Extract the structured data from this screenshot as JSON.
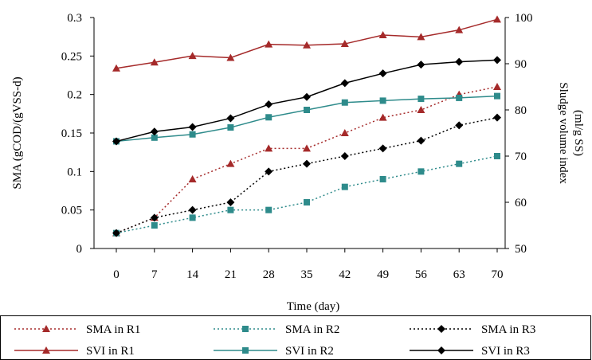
{
  "chart_data": {
    "type": "line",
    "x": [
      0,
      7,
      14,
      21,
      28,
      35,
      42,
      49,
      56,
      63,
      70
    ],
    "xlabel": "Time (day)",
    "ylabel": "SMA (gCOD/(gVSS-d)",
    "y2label_line1": "Sludge volume index",
    "y2label_line2": "(ml/g SS)",
    "ylim": [
      0,
      0.3
    ],
    "y2lim": [
      50,
      100
    ],
    "y_ticks": [
      "0",
      "0.05",
      "0.1",
      "0.15",
      "0.2",
      "0.25",
      "0.3"
    ],
    "y2_ticks": [
      "50",
      "60",
      "70",
      "80",
      "90",
      "100"
    ],
    "x_ticks": [
      "0",
      "7",
      "14",
      "21",
      "28",
      "35",
      "42",
      "49",
      "56",
      "63",
      "70"
    ],
    "grid": false,
    "legend_position": "bottom",
    "series": [
      {
        "name": "SMA in R1",
        "axis": "left",
        "style": "dotted",
        "marker": "triangle",
        "color": "#a52a2a",
        "values": [
          0.02,
          0.04,
          0.09,
          0.11,
          0.13,
          0.13,
          0.15,
          0.17,
          0.18,
          0.2,
          0.21
        ]
      },
      {
        "name": "SMA in R2",
        "axis": "left",
        "style": "dotted",
        "marker": "square",
        "color": "#2e8b8b",
        "values": [
          0.02,
          0.03,
          0.04,
          0.05,
          0.05,
          0.06,
          0.08,
          0.09,
          0.1,
          0.11,
          0.12
        ]
      },
      {
        "name": "SMA in R3",
        "axis": "left",
        "style": "dotted",
        "marker": "diamond",
        "color": "#000000",
        "values": [
          0.02,
          0.04,
          0.05,
          0.06,
          0.1,
          0.11,
          0.12,
          0.13,
          0.14,
          0.16,
          0.17
        ]
      },
      {
        "name": "SVI in R1",
        "axis": "right",
        "style": "solid",
        "marker": "triangle",
        "color": "#a52a2a",
        "values": [
          89,
          90.3,
          91.7,
          91.3,
          94.2,
          94,
          94.3,
          96.2,
          95.8,
          97.3,
          99.6
        ]
      },
      {
        "name": "SVI in R2",
        "axis": "right",
        "style": "solid",
        "marker": "square",
        "color": "#2e8b8b",
        "values": [
          73.2,
          74,
          74.7,
          76.2,
          78.4,
          80,
          81.6,
          82,
          82.4,
          82.6,
          83
        ]
      },
      {
        "name": "SVI in R3",
        "axis": "right",
        "style": "solid",
        "marker": "diamond",
        "color": "#000000",
        "values": [
          73.2,
          75.3,
          76.3,
          78.2,
          81.2,
          82.8,
          85.8,
          87.9,
          89.8,
          90.4,
          90.8
        ]
      }
    ]
  }
}
